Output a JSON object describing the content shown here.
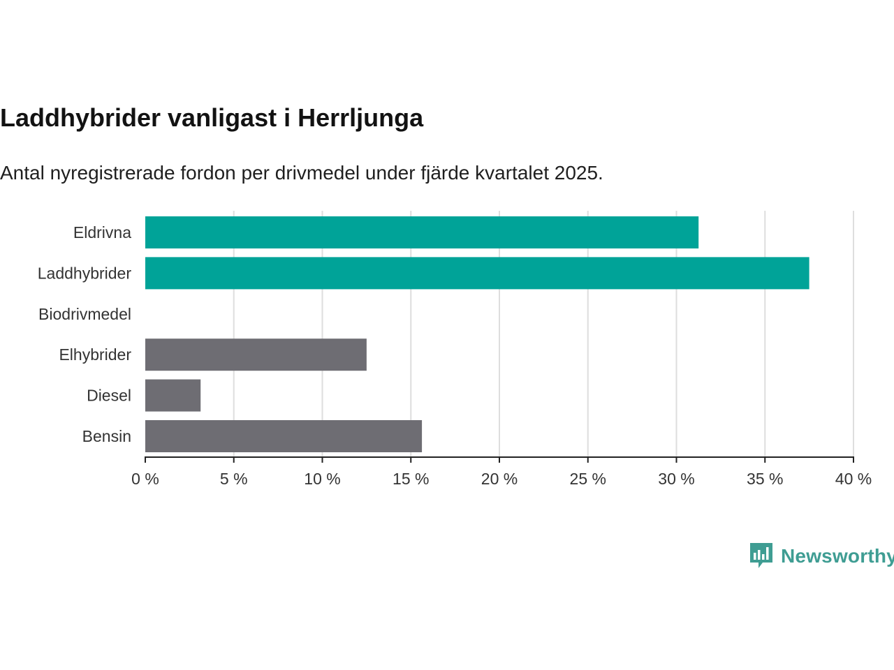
{
  "chart_data": {
    "type": "bar",
    "orientation": "horizontal",
    "title": "Laddhybrider vanligast i Herrljunga",
    "subtitle": "Antal nyregistrerade fordon per drivmedel under fjärde kvartalet 2025.",
    "categories": [
      "Eldrivna",
      "Laddhybrider",
      "Biodrivmedel",
      "Elhybrider",
      "Diesel",
      "Bensin"
    ],
    "values": [
      31.25,
      37.5,
      0,
      12.5,
      3.125,
      15.625
    ],
    "unit": "%",
    "xlim": [
      0,
      40
    ],
    "ticks": [
      0,
      5,
      10,
      15,
      20,
      25,
      30,
      35,
      40
    ],
    "tick_labels": [
      "0 %",
      "5 %",
      "10 %",
      "15 %",
      "20 %",
      "25 %",
      "30 %",
      "35 %",
      "40 %"
    ],
    "grid": true,
    "highlight_categories": [
      "Eldrivna",
      "Laddhybrider"
    ],
    "colors": {
      "highlight": "#00a398",
      "default": "#6e6d73",
      "grid": "#dedede",
      "axis": "#222222"
    }
  },
  "brand": {
    "name": "Newsworthy",
    "icon": "newsworthy-logo-icon",
    "color": "#3f9d93"
  }
}
